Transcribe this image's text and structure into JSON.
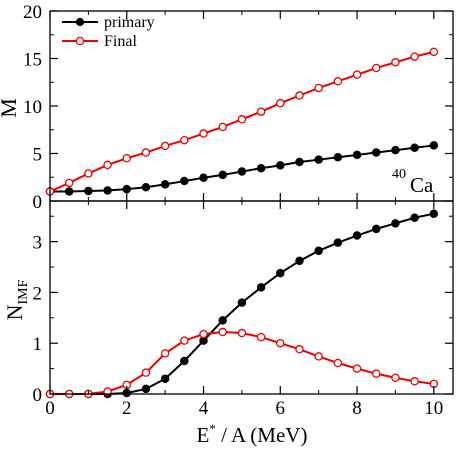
{
  "chart_data": [
    {
      "type": "line",
      "panel": "top",
      "ylabel": "M",
      "ylim": [
        0,
        20
      ],
      "yticks": [
        0,
        5,
        10,
        15,
        20
      ],
      "xlim": [
        0,
        10.5
      ],
      "annotation": {
        "sup": "40",
        "text": "Ca"
      },
      "legend_position": "top-left",
      "series": [
        {
          "name": "primary",
          "color": "#000000",
          "marker": "filled-circle",
          "x": [
            0,
            0.5,
            1,
            1.5,
            2,
            2.5,
            3,
            3.5,
            4,
            4.5,
            5,
            5.5,
            6,
            6.5,
            7,
            7.5,
            8,
            8.5,
            9,
            9.5,
            10
          ],
          "values": [
            1.0,
            1.0,
            1.05,
            1.1,
            1.25,
            1.45,
            1.75,
            2.1,
            2.45,
            2.75,
            3.1,
            3.45,
            3.75,
            4.1,
            4.35,
            4.6,
            4.85,
            5.1,
            5.35,
            5.6,
            5.85
          ]
        },
        {
          "name": "Final",
          "color": "#ee0000",
          "marker": "open-circle",
          "x": [
            0,
            0.5,
            1,
            1.5,
            2,
            2.5,
            3,
            3.5,
            4,
            4.5,
            5,
            5.5,
            6,
            6.5,
            7,
            7.5,
            8,
            8.5,
            9,
            9.5,
            10
          ],
          "values": [
            1.0,
            1.9,
            2.9,
            3.8,
            4.5,
            5.1,
            5.8,
            6.4,
            7.1,
            7.8,
            8.6,
            9.4,
            10.3,
            11.1,
            11.9,
            12.6,
            13.3,
            14.0,
            14.6,
            15.2,
            15.7
          ]
        }
      ]
    },
    {
      "type": "line",
      "panel": "bottom",
      "ylabel": "N",
      "ylabel_sub": "IMF",
      "xlabel": "E",
      "xlabel_sup": "*",
      "xlabel_rest": " / A (MeV)",
      "ylim": [
        0,
        3.8
      ],
      "yticks": [
        0,
        1,
        2,
        3
      ],
      "xlim": [
        0,
        10.5
      ],
      "xticks": [
        0,
        2,
        4,
        6,
        8,
        10
      ],
      "series": [
        {
          "name": "primary",
          "color": "#000000",
          "marker": "filled-circle",
          "x": [
            0,
            0.5,
            1,
            1.5,
            2,
            2.5,
            3,
            3.5,
            4,
            4.5,
            5,
            5.5,
            6,
            6.5,
            7,
            7.5,
            8,
            8.5,
            9,
            9.5,
            10
          ],
          "values": [
            0.0,
            0.0,
            0.0,
            0.0,
            0.02,
            0.1,
            0.3,
            0.65,
            1.05,
            1.45,
            1.8,
            2.1,
            2.38,
            2.62,
            2.82,
            2.98,
            3.12,
            3.25,
            3.36,
            3.47,
            3.55
          ]
        },
        {
          "name": "Final",
          "color": "#ee0000",
          "marker": "open-circle",
          "x": [
            0,
            0.5,
            1,
            1.5,
            2,
            2.5,
            3,
            3.5,
            4,
            4.5,
            5,
            5.5,
            6,
            6.5,
            7,
            7.5,
            8,
            8.5,
            9,
            9.5,
            10
          ],
          "values": [
            0.0,
            0.0,
            0.0,
            0.05,
            0.18,
            0.42,
            0.8,
            1.05,
            1.18,
            1.22,
            1.2,
            1.12,
            1.0,
            0.88,
            0.74,
            0.61,
            0.5,
            0.4,
            0.32,
            0.25,
            0.2
          ]
        }
      ]
    }
  ]
}
